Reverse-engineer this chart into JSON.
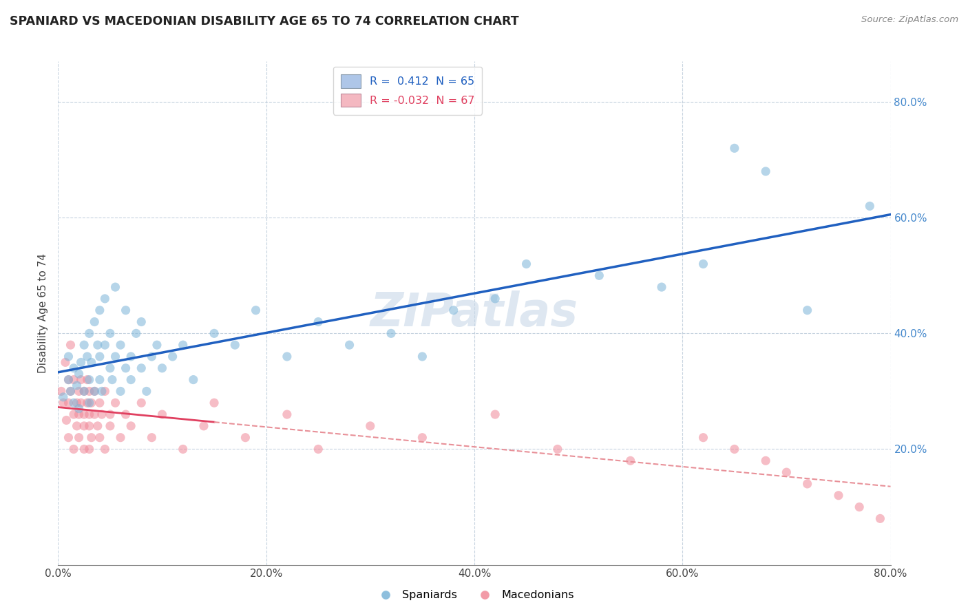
{
  "title": "SPANIARD VS MACEDONIAN DISABILITY AGE 65 TO 74 CORRELATION CHART",
  "source_text": "Source: ZipAtlas.com",
  "ylabel": "Disability Age 65 to 74",
  "xlim": [
    0.0,
    0.8
  ],
  "ylim": [
    0.0,
    0.87
  ],
  "xtick_labels": [
    "0.0%",
    "20.0%",
    "40.0%",
    "60.0%",
    "80.0%"
  ],
  "xtick_vals": [
    0.0,
    0.2,
    0.4,
    0.6,
    0.8
  ],
  "ytick_labels": [
    "20.0%",
    "40.0%",
    "60.0%",
    "80.0%"
  ],
  "ytick_vals": [
    0.2,
    0.4,
    0.6,
    0.8
  ],
  "legend_entries": [
    {
      "label": "R =  0.412  N = 65",
      "color": "#aec6e8"
    },
    {
      "label": "R = -0.032  N = 67",
      "color": "#f4b8c1"
    }
  ],
  "spaniards_scatter_color": "#7ab4d8",
  "macedonians_scatter_color": "#f08898",
  "spaniard_line_color": "#2060c0",
  "macedonian_line_color": "#e04060",
  "macedonian_line_dash_color": "#e89098",
  "watermark_text": "ZIPatlas",
  "watermark_color": "#c8d8e8",
  "legend_label_color_1": "#2060c0",
  "legend_label_color_2": "#e04060",
  "spaniards_x": [
    0.005,
    0.01,
    0.01,
    0.012,
    0.015,
    0.015,
    0.018,
    0.02,
    0.02,
    0.022,
    0.025,
    0.025,
    0.028,
    0.03,
    0.03,
    0.03,
    0.032,
    0.035,
    0.035,
    0.038,
    0.04,
    0.04,
    0.04,
    0.042,
    0.045,
    0.045,
    0.05,
    0.05,
    0.052,
    0.055,
    0.055,
    0.06,
    0.06,
    0.065,
    0.065,
    0.07,
    0.07,
    0.075,
    0.08,
    0.08,
    0.085,
    0.09,
    0.095,
    0.1,
    0.11,
    0.12,
    0.13,
    0.15,
    0.17,
    0.19,
    0.22,
    0.25,
    0.28,
    0.32,
    0.35,
    0.38,
    0.42,
    0.45,
    0.52,
    0.58,
    0.62,
    0.65,
    0.68,
    0.72,
    0.78
  ],
  "spaniards_y": [
    0.29,
    0.32,
    0.36,
    0.3,
    0.34,
    0.28,
    0.31,
    0.33,
    0.27,
    0.35,
    0.38,
    0.3,
    0.36,
    0.32,
    0.28,
    0.4,
    0.35,
    0.42,
    0.3,
    0.38,
    0.32,
    0.36,
    0.44,
    0.3,
    0.38,
    0.46,
    0.34,
    0.4,
    0.32,
    0.36,
    0.48,
    0.3,
    0.38,
    0.34,
    0.44,
    0.36,
    0.32,
    0.4,
    0.34,
    0.42,
    0.3,
    0.36,
    0.38,
    0.34,
    0.36,
    0.38,
    0.32,
    0.4,
    0.38,
    0.44,
    0.36,
    0.42,
    0.38,
    0.4,
    0.36,
    0.44,
    0.46,
    0.52,
    0.5,
    0.48,
    0.52,
    0.72,
    0.68,
    0.44,
    0.62
  ],
  "macedonians_x": [
    0.003,
    0.005,
    0.007,
    0.008,
    0.01,
    0.01,
    0.01,
    0.012,
    0.012,
    0.015,
    0.015,
    0.015,
    0.018,
    0.018,
    0.02,
    0.02,
    0.02,
    0.022,
    0.022,
    0.025,
    0.025,
    0.025,
    0.025,
    0.028,
    0.028,
    0.03,
    0.03,
    0.03,
    0.03,
    0.032,
    0.032,
    0.035,
    0.035,
    0.038,
    0.04,
    0.04,
    0.042,
    0.045,
    0.045,
    0.05,
    0.05,
    0.055,
    0.06,
    0.065,
    0.07,
    0.08,
    0.09,
    0.1,
    0.12,
    0.14,
    0.15,
    0.18,
    0.22,
    0.25,
    0.3,
    0.35,
    0.42,
    0.48,
    0.55,
    0.62,
    0.65,
    0.68,
    0.7,
    0.72,
    0.75,
    0.77,
    0.79
  ],
  "macedonians_y": [
    0.3,
    0.28,
    0.35,
    0.25,
    0.32,
    0.28,
    0.22,
    0.3,
    0.38,
    0.26,
    0.32,
    0.2,
    0.28,
    0.24,
    0.3,
    0.26,
    0.22,
    0.32,
    0.28,
    0.26,
    0.3,
    0.24,
    0.2,
    0.28,
    0.32,
    0.24,
    0.3,
    0.26,
    0.2,
    0.28,
    0.22,
    0.26,
    0.3,
    0.24,
    0.28,
    0.22,
    0.26,
    0.3,
    0.2,
    0.26,
    0.24,
    0.28,
    0.22,
    0.26,
    0.24,
    0.28,
    0.22,
    0.26,
    0.2,
    0.24,
    0.28,
    0.22,
    0.26,
    0.2,
    0.24,
    0.22,
    0.26,
    0.2,
    0.18,
    0.22,
    0.2,
    0.18,
    0.16,
    0.14,
    0.12,
    0.1,
    0.08
  ]
}
